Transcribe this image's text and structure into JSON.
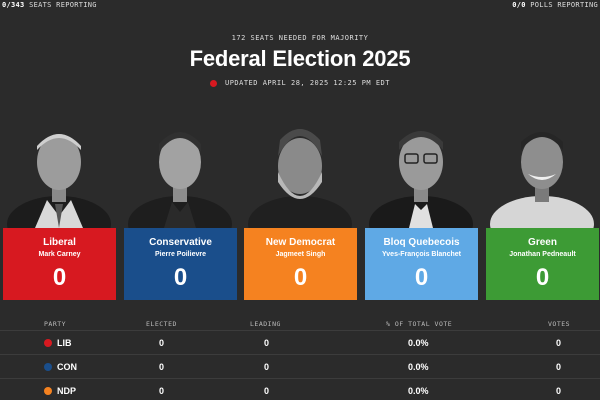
{
  "topbar": {
    "seats_count": "0/343",
    "seats_label": "SEATS REPORTING",
    "polls_count": "0/0",
    "polls_label": "POLLS REPORTING"
  },
  "header": {
    "majority": "172 SEATS NEEDED FOR MAJORITY",
    "title": "Federal Election 2025",
    "updated": "UPDATED APRIL 28, 2025 12:25 PM EDT"
  },
  "colors": {
    "liberal": "#d71920",
    "conservative": "#1a4e8b",
    "ndp": "#f58220",
    "bloc": "#5fa9e5",
    "green": "#3d9b35",
    "background": "#2b2b2b"
  },
  "cards": [
    {
      "party": "Liberal",
      "leader": "Mark Carney",
      "seats": "0",
      "color": "#d71920"
    },
    {
      "party": "Conservative",
      "leader": "Pierre Poilievre",
      "seats": "0",
      "color": "#1a4e8b"
    },
    {
      "party": "New Democrat",
      "leader": "Jagmeet Singh",
      "seats": "0",
      "color": "#f58220"
    },
    {
      "party": "Bloq Quebecois",
      "leader": "Yves-François Blanchet",
      "seats": "0",
      "color": "#5fa9e5"
    },
    {
      "party": "Green",
      "leader": "Jonathan Pedneault",
      "seats": "0",
      "color": "#3d9b35"
    }
  ],
  "table": {
    "headers": {
      "party": "PARTY",
      "elected": "ELECTED",
      "leading": "LEADING",
      "vote_pct": "% OF TOTAL VOTE",
      "votes": "VOTES"
    },
    "rows": [
      {
        "party": "LIB",
        "elected": "0",
        "leading": "0",
        "vote_pct": "0.0%",
        "votes": "0",
        "color": "#d71920"
      },
      {
        "party": "CON",
        "elected": "0",
        "leading": "0",
        "vote_pct": "0.0%",
        "votes": "0",
        "color": "#1a4e8b"
      },
      {
        "party": "NDP",
        "elected": "0",
        "leading": "0",
        "vote_pct": "0.0%",
        "votes": "0",
        "color": "#f58220"
      }
    ]
  }
}
